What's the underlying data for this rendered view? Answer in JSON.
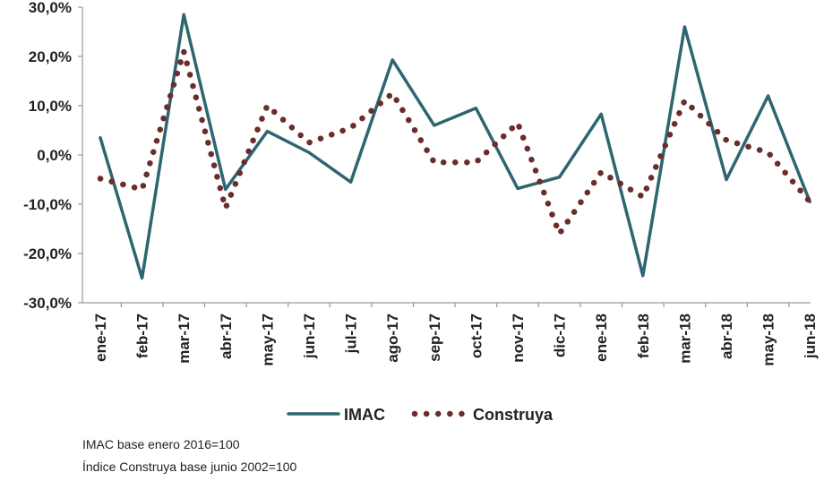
{
  "chart_data": {
    "type": "line",
    "categories": [
      "ene-17",
      "feb-17",
      "mar-17",
      "abr-17",
      "may-17",
      "jun-17",
      "jul-17",
      "ago-17",
      "sep-17",
      "oct-17",
      "nov-17",
      "dic-17",
      "ene-18",
      "feb-18",
      "mar-18",
      "abr-18",
      "may-18",
      "jun-18"
    ],
    "series": [
      {
        "name": "IMAC",
        "style": "solid",
        "color": "#2e6670",
        "values": [
          3.5,
          -25.0,
          28.5,
          -7.0,
          4.8,
          0.5,
          -5.5,
          19.3,
          6.0,
          9.5,
          -6.8,
          -4.5,
          8.3,
          -24.5,
          26.0,
          -5.0,
          12.0,
          -9.5
        ]
      },
      {
        "name": "Construya",
        "style": "dotted",
        "color": "#6b2c2c",
        "values": [
          -4.8,
          -7.0,
          21.0,
          -10.8,
          10.0,
          2.5,
          5.5,
          12.5,
          -1.5,
          -1.5,
          6.5,
          -16.0,
          -3.5,
          -8.5,
          11.0,
          3.0,
          0.5,
          -9.5
        ]
      }
    ],
    "y_ticks": [
      "-30,0%",
      "-20,0%",
      "-10,0%",
      "0,0%",
      "10,0%",
      "20,0%",
      "30,0%"
    ],
    "ylim": [
      -30,
      30
    ],
    "grid": false,
    "legend_position": "bottom"
  },
  "notes": {
    "line1": "IMAC base enero 2016=100",
    "line2": "Índice Construya base junio 2002=100"
  }
}
